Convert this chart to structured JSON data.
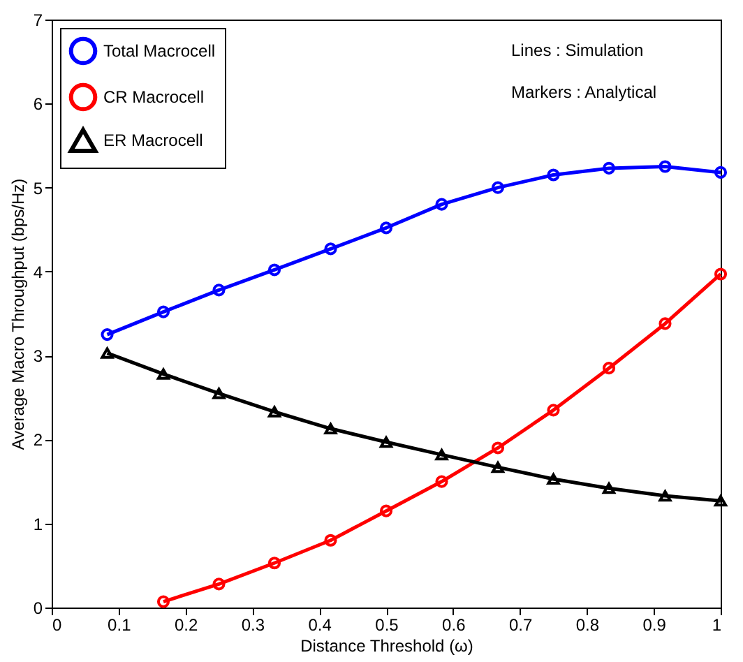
{
  "chart_data": {
    "type": "line",
    "xlabel": "Distance Threshold (ω)",
    "ylabel": "Average Macro Throughput (bps/Hz)",
    "xlim": [
      0,
      1
    ],
    "xticks": [
      0,
      0.1,
      0.2,
      0.3,
      0.4,
      0.5,
      0.6,
      0.7,
      0.8,
      0.9,
      1
    ],
    "ylim": [
      0,
      7
    ],
    "yticks": [
      0,
      1,
      2,
      3,
      4,
      5,
      6,
      7
    ],
    "grid": false,
    "legend": "top left",
    "annotations": [
      "Lines : Simulation",
      "Markers : Analytical"
    ],
    "series": [
      {
        "name": "Total Macrocell",
        "color": "#0000ff",
        "marker": "circle",
        "x": [
          0.083,
          0.167,
          0.25,
          0.333,
          0.417,
          0.5,
          0.583,
          0.667,
          0.75,
          0.833,
          0.917,
          1.0
        ],
        "values": [
          3.25,
          3.52,
          3.78,
          4.02,
          4.27,
          4.52,
          4.8,
          5.0,
          5.15,
          5.23,
          5.25,
          5.18
        ]
      },
      {
        "name": "CR Macrocell",
        "color": "#ff0000",
        "marker": "circle",
        "x": [
          0.167,
          0.25,
          0.333,
          0.417,
          0.5,
          0.583,
          0.667,
          0.75,
          0.833,
          0.917,
          1.0
        ],
        "values": [
          0.07,
          0.28,
          0.53,
          0.8,
          1.15,
          1.5,
          1.9,
          2.35,
          2.85,
          3.38,
          3.97
        ]
      },
      {
        "name": "ER Macrocell",
        "color": "#000000",
        "marker": "triangle",
        "x": [
          0.083,
          0.167,
          0.25,
          0.333,
          0.417,
          0.5,
          0.583,
          0.667,
          0.75,
          0.833,
          0.917,
          1.0
        ],
        "values": [
          3.03,
          2.78,
          2.55,
          2.33,
          2.13,
          1.97,
          1.82,
          1.67,
          1.53,
          1.42,
          1.33,
          1.27
        ]
      }
    ]
  }
}
